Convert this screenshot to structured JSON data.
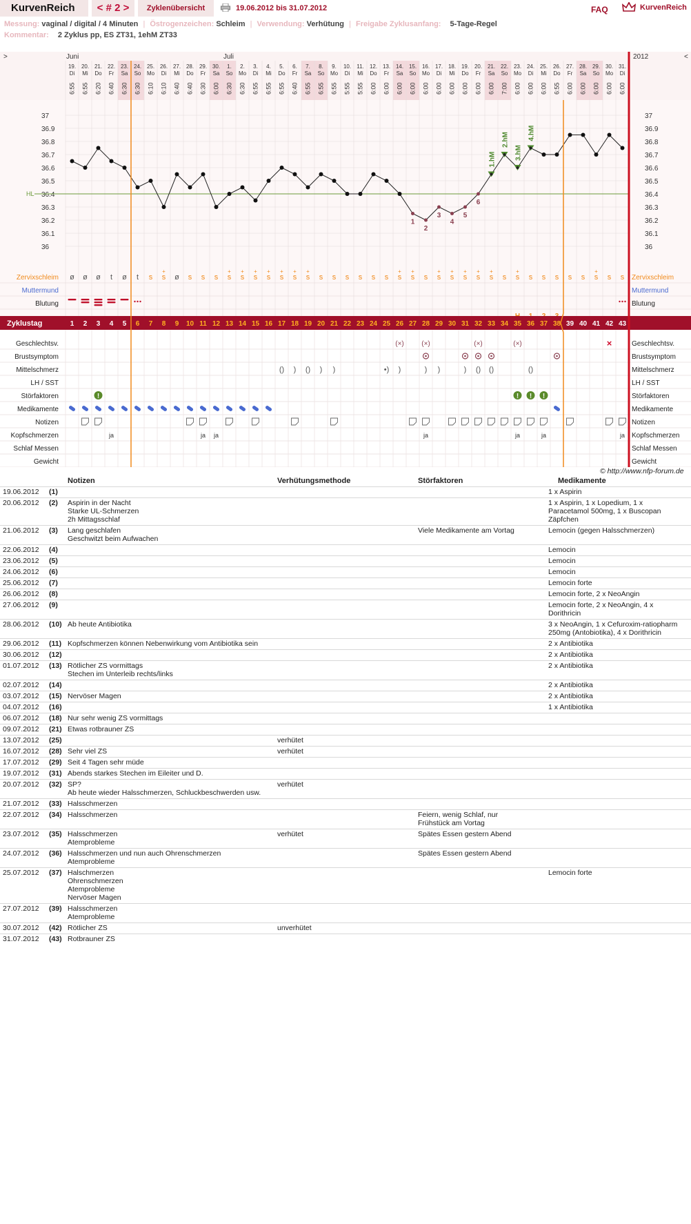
{
  "header": {
    "logo": "KurvenReich",
    "cycle_prev": "<",
    "cycle_label": "# 2",
    "cycle_next": ">",
    "overview": "Zyklenübersicht",
    "date_range": "19.06.2012 bis 31.07.2012",
    "faq": "FAQ",
    "brand": "KurvenReich"
  },
  "meta": {
    "messung_k": "Messung:",
    "messung_v": "vaginal / digital / 4 Minuten",
    "oestrogen_k": "Östrogenzeichen:",
    "oestrogen_v": "Schleim",
    "verwendung_k": "Verwendung:",
    "verwendung_v": "Verhütung",
    "freigabe_k": "Freigabe Zyklusanfang:",
    "freigabe_v": "5-Tage-Regel",
    "kommentar_k": "Kommentar:",
    "kommentar_v": "2 Zyklus pp, ES ZT31, 1ehM ZT33"
  },
  "chart_data": {
    "type": "line",
    "year": "2012",
    "nav_left": ">",
    "nav_right": "<",
    "months": [
      {
        "day_index": 0,
        "label": "Juni"
      },
      {
        "day_index": 12,
        "label": "Juli"
      }
    ],
    "dates": [
      "19.",
      "20.",
      "21.",
      "22.",
      "23.",
      "24.",
      "25.",
      "26.",
      "27.",
      "28.",
      "29.",
      "30.",
      "1.",
      "2.",
      "3.",
      "4.",
      "5.",
      "6.",
      "7.",
      "8.",
      "9.",
      "10.",
      "11.",
      "12.",
      "13.",
      "14.",
      "15.",
      "16.",
      "17.",
      "18.",
      "19.",
      "20.",
      "21.",
      "22.",
      "23.",
      "24.",
      "25.",
      "26.",
      "27.",
      "28.",
      "29.",
      "30.",
      "31."
    ],
    "weekdays": [
      "Di",
      "Mi",
      "Do",
      "Fr",
      "Sa",
      "So",
      "Mo",
      "Di",
      "Mi",
      "Do",
      "Fr",
      "Sa",
      "So",
      "Mo",
      "Di",
      "Mi",
      "Do",
      "Fr",
      "Sa",
      "So",
      "Mo",
      "Di",
      "Mi",
      "Do",
      "Fr",
      "Sa",
      "So",
      "Mo",
      "Di",
      "Mi",
      "Do",
      "Fr",
      "Sa",
      "So",
      "Mo",
      "Di",
      "Mi",
      "Do",
      "Fr",
      "Sa",
      "So",
      "Mo",
      "Di"
    ],
    "times": [
      "6:55",
      "6:55",
      "6:20",
      "6:40",
      "6:30",
      "6:30",
      "6:10",
      "6:10",
      "6:40",
      "6:40",
      "6:30",
      "6:00",
      "6:30",
      "6:30",
      "6:55",
      "6:55",
      "6:55",
      "6:40",
      "6:55",
      "6:55",
      "6:55",
      "5:55",
      "5:55",
      "6:00",
      "6:00",
      "6:00",
      "6:00",
      "6:00",
      "6:00",
      "6:00",
      "6:00",
      "6:00",
      "6:00",
      "7:00",
      "6:00",
      "6:00",
      "6:00",
      "6:55",
      "6:00",
      "6:00",
      "6:00",
      "6:00",
      "6:00"
    ],
    "temps": [
      36.65,
      36.6,
      36.75,
      36.65,
      36.6,
      36.45,
      36.5,
      36.3,
      36.55,
      36.45,
      36.55,
      36.3,
      36.4,
      36.45,
      36.35,
      36.5,
      36.6,
      36.55,
      36.45,
      36.55,
      36.5,
      36.4,
      36.4,
      36.55,
      36.5,
      36.4,
      36.25,
      36.2,
      36.3,
      36.25,
      36.3,
      36.4,
      36.55,
      36.7,
      36.6,
      36.75,
      36.7,
      36.7,
      36.85,
      36.85,
      36.7,
      36.85,
      36.75
    ],
    "yticks": [
      "37",
      "36.9",
      "36.8",
      "36.7",
      "36.6",
      "36.5",
      "36.4",
      "36.3",
      "36.2",
      "36.1",
      "36"
    ],
    "ylim": [
      36.0,
      37.0
    ],
    "hl_label": "HL",
    "hl_value": 36.4,
    "low_labels": [
      {
        "day": 27,
        "label": "1"
      },
      {
        "day": 28,
        "label": "2"
      },
      {
        "day": 29,
        "label": "3"
      },
      {
        "day": 30,
        "label": "4"
      },
      {
        "day": 31,
        "label": "5"
      },
      {
        "day": 32,
        "label": "6"
      }
    ],
    "hm_labels": [
      {
        "day": 33,
        "label": "1.hM"
      },
      {
        "day": 34,
        "label": "2.hM"
      },
      {
        "day": 35,
        "label": "3.hM"
      },
      {
        "day": 36,
        "label": "4.hM"
      }
    ],
    "h_markers": [
      {
        "day": 35,
        "label": "H"
      },
      {
        "day": 36,
        "label": "1"
      },
      {
        "day": 37,
        "label": "2"
      },
      {
        "day": 38,
        "label": "3"
      }
    ],
    "zervix": [
      "ø",
      "ø",
      "ø",
      "t",
      "ø",
      "t",
      "s",
      "s+",
      "ø",
      "s",
      "s",
      "s",
      "s+",
      "s+",
      "s+",
      "s+",
      "s+",
      "s+",
      "s+",
      "s",
      "s",
      "s",
      "s",
      "s",
      "s",
      "s+",
      "s+",
      "s",
      "s+",
      "s+",
      "s+",
      "s+",
      "s+",
      "s",
      "s+",
      "s",
      "s",
      "s",
      "s",
      "s",
      "s+",
      "s",
      "s"
    ],
    "zyklustag": [
      "1",
      "2",
      "3",
      "4",
      "5",
      "6",
      "7",
      "8",
      "9",
      "10",
      "11",
      "12",
      "13",
      "14",
      "15",
      "16",
      "17",
      "18",
      "19",
      "20",
      "21",
      "22",
      "23",
      "24",
      "25",
      "26",
      "27",
      "28",
      "29",
      "30",
      "31",
      "32",
      "33",
      "34",
      "35",
      "36",
      "37",
      "38",
      "39",
      "40",
      "41",
      "42",
      "43"
    ],
    "blutung": {
      "1": 1,
      "2": 2,
      "3": 3,
      "4": 2,
      "5": 1,
      "6": "dots",
      "43": "dots"
    },
    "geschlecht": [
      26,
      28,
      32,
      35
    ],
    "geschlecht_x": [
      42
    ],
    "brust": [
      28,
      31,
      32,
      33,
      38
    ],
    "mittel": {
      "17": "()",
      "18": ")",
      "19": "()",
      "20": ")",
      "21": ")",
      "25": "•)",
      "26": ")",
      "28": ")",
      "29": ")",
      "31": ")",
      "32": "()",
      "33": "()",
      "36": "()"
    },
    "stoer": [
      3,
      35,
      36,
      37
    ],
    "medis": [
      1,
      2,
      3,
      4,
      5,
      6,
      7,
      8,
      9,
      10,
      11,
      12,
      13,
      14,
      15,
      16,
      38
    ],
    "notizen": [
      2,
      3,
      10,
      11,
      13,
      15,
      18,
      21,
      27,
      28,
      30,
      31,
      32,
      33,
      34,
      35,
      36,
      37,
      39,
      42,
      43
    ],
    "kopf": {
      "4": "ja",
      "11": "ja",
      "12": "ja",
      "28": "ja",
      "35": "ja",
      "37": "ja",
      "43": "ja"
    },
    "cover_line_after_day": 5,
    "es_line_after_day": 38,
    "rows": {
      "zervix": "Zervixschleim",
      "muttermund": "Muttermund",
      "blutung": "Blutung",
      "zyklustag": "Zyklustag",
      "geschlecht": "Geschlechtsv.",
      "brust": "Brustsymptom",
      "mittel": "Mittelschmerz",
      "lh": "LH / SST",
      "stoer": "Störfaktoren",
      "medis": "Medikamente",
      "notizen": "Notizen",
      "kopf": "Kopfschmerzen",
      "schlaf": "Schlaf Messen",
      "gewicht": "Gewicht"
    }
  },
  "copyright": "© http://www.nfp-forum.de",
  "notes": {
    "headers": {
      "notizen": "Notizen",
      "methode": "Verhütungsmethode",
      "stoer": "Störfaktoren",
      "medis": "Medikamente"
    },
    "rows": [
      {
        "date": "19.06.2012",
        "n": "(1)",
        "notiz": "",
        "methode": "",
        "stoer": "",
        "medis": "1 x Aspirin"
      },
      {
        "date": "20.06.2012",
        "n": "(2)",
        "notiz": "Aspirin in der Nacht\nStarke UL-Schmerzen\n2h Mittagsschlaf",
        "methode": "",
        "stoer": "",
        "medis": "1 x Aspirin, 1 x Lopedium, 1 x\nParacetamol 500mg, 1 x Buscopan\nZäpfchen"
      },
      {
        "date": "21.06.2012",
        "n": "(3)",
        "notiz": "Lang geschlafen\nGeschwitzt beim Aufwachen",
        "methode": "",
        "stoer": "Viele Medikamente am Vortag",
        "medis": "Lemocin (gegen Halsschmerzen)"
      },
      {
        "date": "22.06.2012",
        "n": "(4)",
        "notiz": "",
        "methode": "",
        "stoer": "",
        "medis": "Lemocin"
      },
      {
        "date": "23.06.2012",
        "n": "(5)",
        "notiz": "",
        "methode": "",
        "stoer": "",
        "medis": "Lemocin"
      },
      {
        "date": "24.06.2012",
        "n": "(6)",
        "notiz": "",
        "methode": "",
        "stoer": "",
        "medis": "Lemocin"
      },
      {
        "date": "25.06.2012",
        "n": "(7)",
        "notiz": "",
        "methode": "",
        "stoer": "",
        "medis": "Lemocin forte"
      },
      {
        "date": "26.06.2012",
        "n": "(8)",
        "notiz": "",
        "methode": "",
        "stoer": "",
        "medis": "Lemocin forte, 2 x NeoAngin"
      },
      {
        "date": "27.06.2012",
        "n": "(9)",
        "notiz": "",
        "methode": "",
        "stoer": "",
        "medis": "Lemocin forte, 2 x NeoAngin, 4 x\nDorithricin"
      },
      {
        "date": "28.06.2012",
        "n": "(10)",
        "notiz": "Ab heute Antibiotika",
        "methode": "",
        "stoer": "",
        "medis": "3 x NeoAngin, 1 x Cefuroxim-ratiopharm\n250mg (Antobiotika), 4 x Dorithricin"
      },
      {
        "date": "29.06.2012",
        "n": "(11)",
        "notiz": "Kopfschmerzen können Nebenwirkung vom Antibiotika sein",
        "methode": "",
        "stoer": "",
        "medis": "2 x Antibiotika"
      },
      {
        "date": "30.06.2012",
        "n": "(12)",
        "notiz": "",
        "methode": "",
        "stoer": "",
        "medis": "2 x Antibiotika"
      },
      {
        "date": "01.07.2012",
        "n": "(13)",
        "notiz": "Rötlicher ZS vormittags\nStechen im Unterleib rechts/links",
        "methode": "",
        "stoer": "",
        "medis": "2 x Antibiotika"
      },
      {
        "date": "02.07.2012",
        "n": "(14)",
        "notiz": "",
        "methode": "",
        "stoer": "",
        "medis": "2 x Antibiotika"
      },
      {
        "date": "03.07.2012",
        "n": "(15)",
        "notiz": "Nervöser Magen",
        "methode": "",
        "stoer": "",
        "medis": "2 x Antibiotika"
      },
      {
        "date": "04.07.2012",
        "n": "(16)",
        "notiz": "",
        "methode": "",
        "stoer": "",
        "medis": "1 x Antibiotika"
      },
      {
        "date": "06.07.2012",
        "n": "(18)",
        "notiz": "Nur sehr wenig ZS vormittags",
        "methode": "",
        "stoer": "",
        "medis": ""
      },
      {
        "date": "09.07.2012",
        "n": "(21)",
        "notiz": "Etwas rotbrauner ZS",
        "methode": "",
        "stoer": "",
        "medis": ""
      },
      {
        "date": "13.07.2012",
        "n": "(25)",
        "notiz": "",
        "methode": "verhütet",
        "stoer": "",
        "medis": ""
      },
      {
        "date": "16.07.2012",
        "n": "(28)",
        "notiz": "Sehr viel ZS",
        "methode": "verhütet",
        "stoer": "",
        "medis": ""
      },
      {
        "date": "17.07.2012",
        "n": "(29)",
        "notiz": "Seit 4 Tagen sehr müde",
        "methode": "",
        "stoer": "",
        "medis": ""
      },
      {
        "date": "19.07.2012",
        "n": "(31)",
        "notiz": "Abends starkes Stechen im Eileiter und D.",
        "methode": "",
        "stoer": "",
        "medis": ""
      },
      {
        "date": "20.07.2012",
        "n": "(32)",
        "notiz": "SP?\nAb heute wieder Halsschmerzen, Schluckbeschwerden usw.",
        "methode": "verhütet",
        "stoer": "",
        "medis": ""
      },
      {
        "date": "21.07.2012",
        "n": "(33)",
        "notiz": "Halsschmerzen",
        "methode": "",
        "stoer": "",
        "medis": ""
      },
      {
        "date": "22.07.2012",
        "n": "(34)",
        "notiz": "Halsschmerzen",
        "methode": "",
        "stoer": "Feiern, wenig Schlaf, nur\nFrühstück am Vortag",
        "medis": ""
      },
      {
        "date": "23.07.2012",
        "n": "(35)",
        "notiz": "Halsschmerzen\nAtemprobleme",
        "methode": "verhütet",
        "stoer": "Spätes Essen gestern Abend",
        "medis": ""
      },
      {
        "date": "24.07.2012",
        "n": "(36)",
        "notiz": "Halsschmerzen und nun auch Ohrenschmerzen\nAtemprobleme",
        "methode": "",
        "stoer": "Spätes Essen gestern Abend",
        "medis": ""
      },
      {
        "date": "25.07.2012",
        "n": "(37)",
        "notiz": "Halschmerzen\nOhrenschmerzen\nAtemprobleme\nNervöser Magen",
        "methode": "",
        "stoer": "",
        "medis": "Lemocin forte"
      },
      {
        "date": "27.07.2012",
        "n": "(39)",
        "notiz": "Halsschmerzen\nAtemprobleme",
        "methode": "",
        "stoer": "",
        "medis": ""
      },
      {
        "date": "30.07.2012",
        "n": "(42)",
        "notiz": "Rötlicher ZS",
        "methode": "unverhütet",
        "stoer": "",
        "medis": ""
      },
      {
        "date": "31.07.2012",
        "n": "(43)",
        "notiz": "Rotbrauner ZS",
        "methode": "",
        "stoer": "",
        "medis": ""
      }
    ]
  },
  "colors": {
    "accent": "#a0102a",
    "orange": "#f08a1c",
    "green": "#5a8a2a",
    "blue": "#4a6ad0",
    "grid": "#ddd",
    "low": "#8a4050"
  }
}
